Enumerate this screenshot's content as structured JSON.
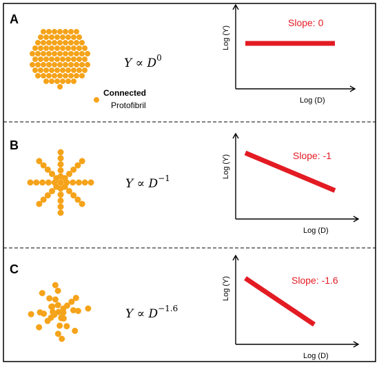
{
  "colors": {
    "dot": "#f5a31a",
    "slope_line": "#e31b23",
    "frame": "#000000",
    "divider": "#000000"
  },
  "panels": [
    {
      "letter": "A",
      "formula": {
        "base": "Y ∝ D",
        "exponent": "0"
      },
      "graph": {
        "ylabel": "Log (Y)",
        "xlabel": "Log (D)",
        "slope_label": "Slope: 0",
        "slope": 0
      },
      "pattern": "connected"
    },
    {
      "letter": "B",
      "formula": {
        "base": "Y ∝ D",
        "exponent": "−1"
      },
      "graph": {
        "ylabel": "Log (Y)",
        "xlabel": "Log (D)",
        "slope_label": "Slope: -1",
        "slope": -1
      },
      "pattern": "star"
    },
    {
      "letter": "C",
      "formula": {
        "base": "Y ∝ D",
        "exponent": "−1.6"
      },
      "graph": {
        "ylabel": "Log (Y)",
        "xlabel": "Log (D)",
        "slope_label": "Slope: -1.6",
        "slope": -1.6
      },
      "pattern": "scatter"
    }
  ],
  "legend": {
    "bold": "Connected",
    "text": "Protofibril",
    "icon": "orange-dot"
  }
}
